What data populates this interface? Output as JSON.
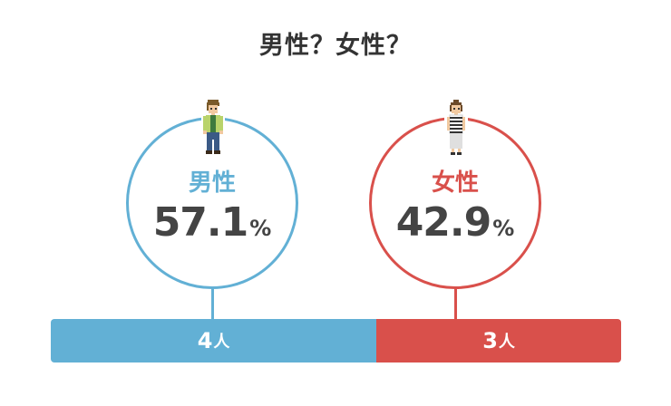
{
  "title": "男性？女性？",
  "colors": {
    "male": "#62b0d5",
    "female": "#d9504b"
  },
  "chart_data": {
    "type": "bar",
    "title": "男性？女性？",
    "stacked": true,
    "categories": [
      "男性",
      "女性"
    ],
    "series": [
      {
        "name": "男性",
        "percent": 57.1,
        "count": 4
      },
      {
        "name": "女性",
        "percent": 42.9,
        "count": 3
      }
    ],
    "percent_unit": "%",
    "count_unit": "人"
  }
}
